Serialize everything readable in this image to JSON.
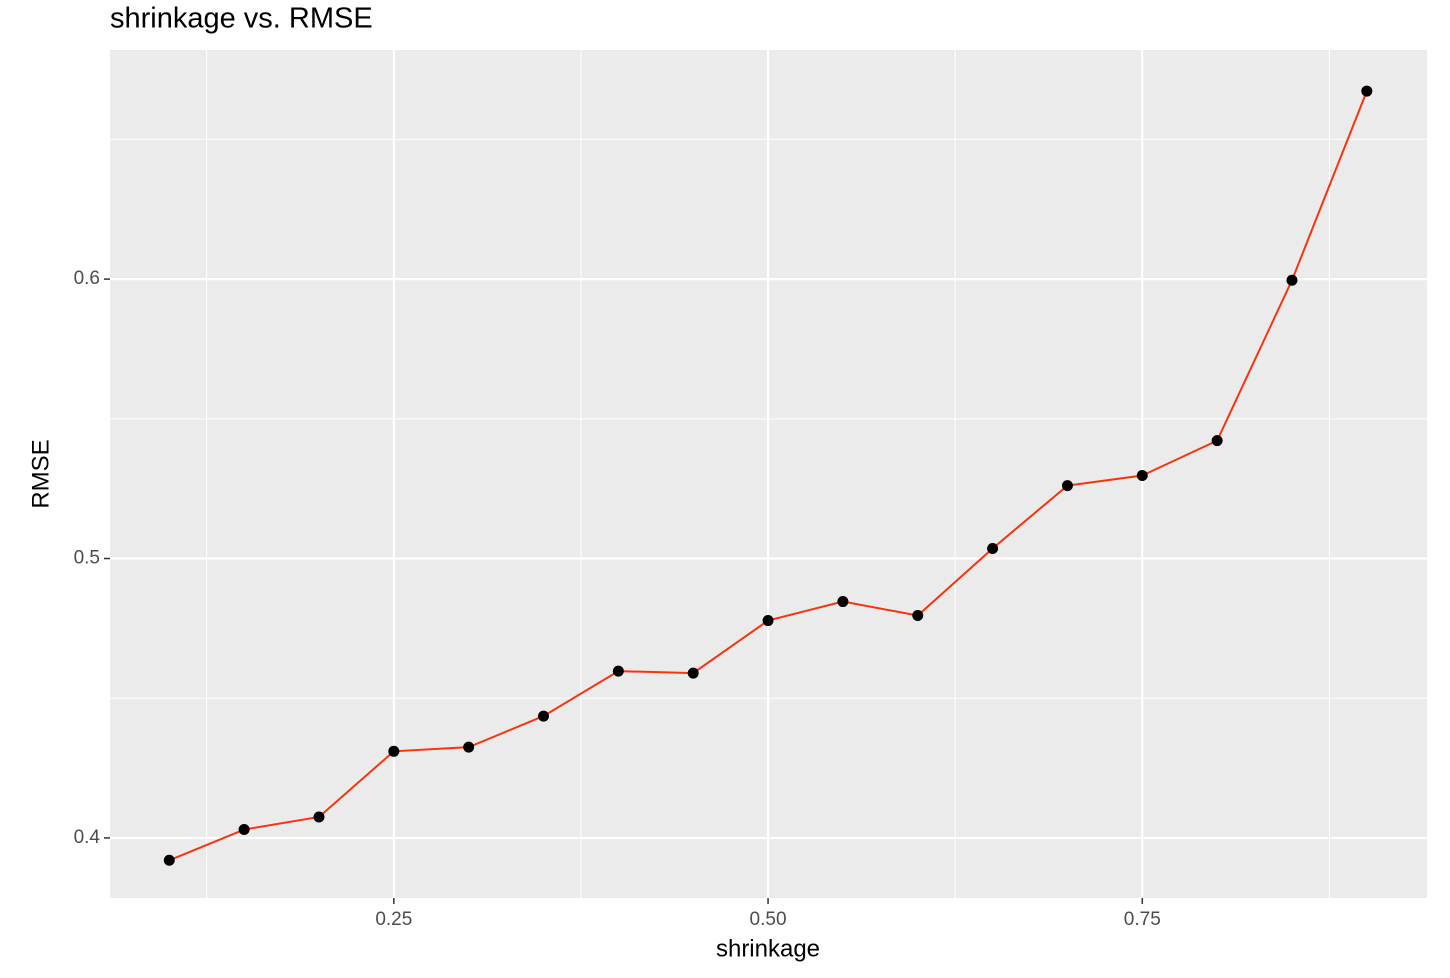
{
  "chart_data": {
    "type": "line",
    "title": "shrinkage vs. RMSE",
    "x_label": "shrinkage",
    "y_label": "RMSE",
    "x": [
      0.1,
      0.15,
      0.2,
      0.25,
      0.3,
      0.35,
      0.4,
      0.45,
      0.5,
      0.55,
      0.6,
      0.65,
      0.7,
      0.75,
      0.8,
      0.85,
      0.9
    ],
    "series": [
      {
        "name": "RMSE",
        "color": "#f8340f",
        "values": [
          0.392,
          0.403,
          0.4075,
          0.431,
          0.4325,
          0.4436,
          0.4597,
          0.459,
          0.4778,
          0.4846,
          0.4796,
          0.5036,
          0.5261,
          0.5297,
          0.5422,
          0.5996,
          0.6673
        ]
      }
    ],
    "point_color": "#000000",
    "xlim": [
      0.0604,
      0.9402
    ],
    "ylim": [
      0.3785,
      0.682
    ],
    "xticks": [
      0.25,
      {
        "value": 0.5,
        "label": "0.50"
      },
      0.75
    ],
    "yticks": [
      0.4,
      0.5,
      0.6
    ],
    "grid": true
  }
}
